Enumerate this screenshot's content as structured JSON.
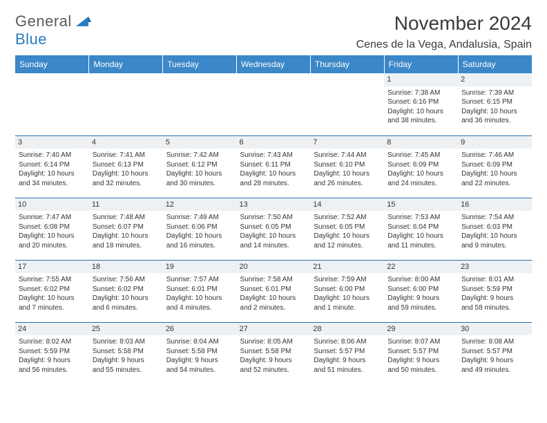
{
  "logo": {
    "word1": "General",
    "word2": "Blue"
  },
  "title": "November 2024",
  "location": "Cenes de la Vega, Andalusia, Spain",
  "colors": {
    "header_bg": "#3b87c8",
    "header_text": "#ffffff",
    "rule": "#2b6fa8",
    "daynum_bg": "#eef1f4",
    "logo_gray": "#5a5a5a",
    "logo_blue": "#2b7cc0",
    "text": "#333333"
  },
  "weekdays": [
    "Sunday",
    "Monday",
    "Tuesday",
    "Wednesday",
    "Thursday",
    "Friday",
    "Saturday"
  ],
  "weeks": [
    [
      null,
      null,
      null,
      null,
      null,
      {
        "n": "1",
        "sunrise": "Sunrise: 7:38 AM",
        "sunset": "Sunset: 6:16 PM",
        "day1": "Daylight: 10 hours",
        "day2": "and 38 minutes."
      },
      {
        "n": "2",
        "sunrise": "Sunrise: 7:39 AM",
        "sunset": "Sunset: 6:15 PM",
        "day1": "Daylight: 10 hours",
        "day2": "and 36 minutes."
      }
    ],
    [
      {
        "n": "3",
        "sunrise": "Sunrise: 7:40 AM",
        "sunset": "Sunset: 6:14 PM",
        "day1": "Daylight: 10 hours",
        "day2": "and 34 minutes."
      },
      {
        "n": "4",
        "sunrise": "Sunrise: 7:41 AM",
        "sunset": "Sunset: 6:13 PM",
        "day1": "Daylight: 10 hours",
        "day2": "and 32 minutes."
      },
      {
        "n": "5",
        "sunrise": "Sunrise: 7:42 AM",
        "sunset": "Sunset: 6:12 PM",
        "day1": "Daylight: 10 hours",
        "day2": "and 30 minutes."
      },
      {
        "n": "6",
        "sunrise": "Sunrise: 7:43 AM",
        "sunset": "Sunset: 6:11 PM",
        "day1": "Daylight: 10 hours",
        "day2": "and 28 minutes."
      },
      {
        "n": "7",
        "sunrise": "Sunrise: 7:44 AM",
        "sunset": "Sunset: 6:10 PM",
        "day1": "Daylight: 10 hours",
        "day2": "and 26 minutes."
      },
      {
        "n": "8",
        "sunrise": "Sunrise: 7:45 AM",
        "sunset": "Sunset: 6:09 PM",
        "day1": "Daylight: 10 hours",
        "day2": "and 24 minutes."
      },
      {
        "n": "9",
        "sunrise": "Sunrise: 7:46 AM",
        "sunset": "Sunset: 6:09 PM",
        "day1": "Daylight: 10 hours",
        "day2": "and 22 minutes."
      }
    ],
    [
      {
        "n": "10",
        "sunrise": "Sunrise: 7:47 AM",
        "sunset": "Sunset: 6:08 PM",
        "day1": "Daylight: 10 hours",
        "day2": "and 20 minutes."
      },
      {
        "n": "11",
        "sunrise": "Sunrise: 7:48 AM",
        "sunset": "Sunset: 6:07 PM",
        "day1": "Daylight: 10 hours",
        "day2": "and 18 minutes."
      },
      {
        "n": "12",
        "sunrise": "Sunrise: 7:49 AM",
        "sunset": "Sunset: 6:06 PM",
        "day1": "Daylight: 10 hours",
        "day2": "and 16 minutes."
      },
      {
        "n": "13",
        "sunrise": "Sunrise: 7:50 AM",
        "sunset": "Sunset: 6:05 PM",
        "day1": "Daylight: 10 hours",
        "day2": "and 14 minutes."
      },
      {
        "n": "14",
        "sunrise": "Sunrise: 7:52 AM",
        "sunset": "Sunset: 6:05 PM",
        "day1": "Daylight: 10 hours",
        "day2": "and 12 minutes."
      },
      {
        "n": "15",
        "sunrise": "Sunrise: 7:53 AM",
        "sunset": "Sunset: 6:04 PM",
        "day1": "Daylight: 10 hours",
        "day2": "and 11 minutes."
      },
      {
        "n": "16",
        "sunrise": "Sunrise: 7:54 AM",
        "sunset": "Sunset: 6:03 PM",
        "day1": "Daylight: 10 hours",
        "day2": "and 9 minutes."
      }
    ],
    [
      {
        "n": "17",
        "sunrise": "Sunrise: 7:55 AM",
        "sunset": "Sunset: 6:02 PM",
        "day1": "Daylight: 10 hours",
        "day2": "and 7 minutes."
      },
      {
        "n": "18",
        "sunrise": "Sunrise: 7:56 AM",
        "sunset": "Sunset: 6:02 PM",
        "day1": "Daylight: 10 hours",
        "day2": "and 6 minutes."
      },
      {
        "n": "19",
        "sunrise": "Sunrise: 7:57 AM",
        "sunset": "Sunset: 6:01 PM",
        "day1": "Daylight: 10 hours",
        "day2": "and 4 minutes."
      },
      {
        "n": "20",
        "sunrise": "Sunrise: 7:58 AM",
        "sunset": "Sunset: 6:01 PM",
        "day1": "Daylight: 10 hours",
        "day2": "and 2 minutes."
      },
      {
        "n": "21",
        "sunrise": "Sunrise: 7:59 AM",
        "sunset": "Sunset: 6:00 PM",
        "day1": "Daylight: 10 hours",
        "day2": "and 1 minute."
      },
      {
        "n": "22",
        "sunrise": "Sunrise: 8:00 AM",
        "sunset": "Sunset: 6:00 PM",
        "day1": "Daylight: 9 hours",
        "day2": "and 59 minutes."
      },
      {
        "n": "23",
        "sunrise": "Sunrise: 8:01 AM",
        "sunset": "Sunset: 5:59 PM",
        "day1": "Daylight: 9 hours",
        "day2": "and 58 minutes."
      }
    ],
    [
      {
        "n": "24",
        "sunrise": "Sunrise: 8:02 AM",
        "sunset": "Sunset: 5:59 PM",
        "day1": "Daylight: 9 hours",
        "day2": "and 56 minutes."
      },
      {
        "n": "25",
        "sunrise": "Sunrise: 8:03 AM",
        "sunset": "Sunset: 5:58 PM",
        "day1": "Daylight: 9 hours",
        "day2": "and 55 minutes."
      },
      {
        "n": "26",
        "sunrise": "Sunrise: 8:04 AM",
        "sunset": "Sunset: 5:58 PM",
        "day1": "Daylight: 9 hours",
        "day2": "and 54 minutes."
      },
      {
        "n": "27",
        "sunrise": "Sunrise: 8:05 AM",
        "sunset": "Sunset: 5:58 PM",
        "day1": "Daylight: 9 hours",
        "day2": "and 52 minutes."
      },
      {
        "n": "28",
        "sunrise": "Sunrise: 8:06 AM",
        "sunset": "Sunset: 5:57 PM",
        "day1": "Daylight: 9 hours",
        "day2": "and 51 minutes."
      },
      {
        "n": "29",
        "sunrise": "Sunrise: 8:07 AM",
        "sunset": "Sunset: 5:57 PM",
        "day1": "Daylight: 9 hours",
        "day2": "and 50 minutes."
      },
      {
        "n": "30",
        "sunrise": "Sunrise: 8:08 AM",
        "sunset": "Sunset: 5:57 PM",
        "day1": "Daylight: 9 hours",
        "day2": "and 49 minutes."
      }
    ]
  ]
}
